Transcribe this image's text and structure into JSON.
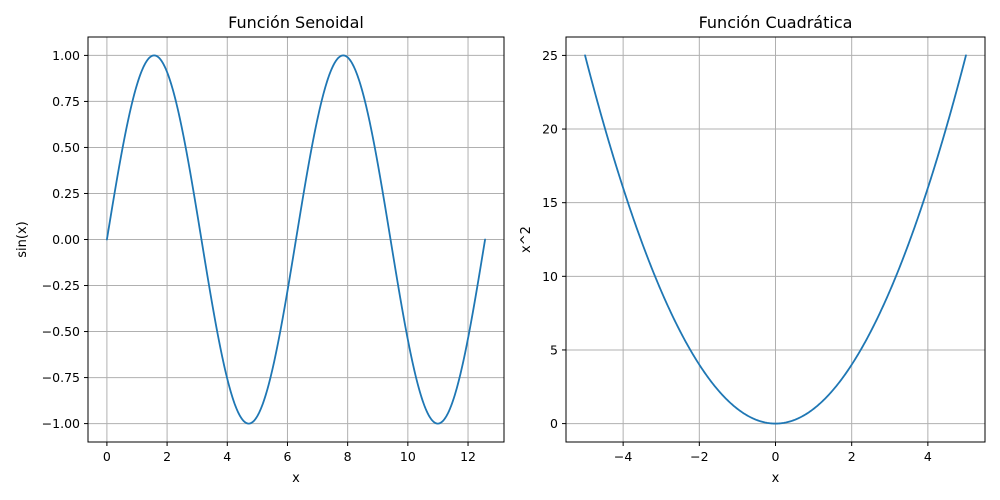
{
  "chart_data": [
    {
      "type": "line",
      "title": "Función Senoidal",
      "xlabel": "x",
      "ylabel": "sin(x)",
      "function": "sin(x)",
      "x_range": [
        0,
        12.566
      ],
      "xlim": [
        -0.628,
        13.195
      ],
      "ylim": [
        -1.1,
        1.1
      ],
      "xticks": [
        0,
        2,
        4,
        6,
        8,
        10,
        12
      ],
      "xtick_labels": [
        "0",
        "2",
        "4",
        "6",
        "8",
        "10",
        "12"
      ],
      "yticks": [
        -1.0,
        -0.75,
        -0.5,
        -0.25,
        0.0,
        0.25,
        0.5,
        0.75,
        1.0
      ],
      "ytick_labels": [
        "−1.00",
        "−0.75",
        "−0.50",
        "−0.25",
        "0.00",
        "0.25",
        "0.50",
        "0.75",
        "1.00"
      ],
      "grid": true,
      "series": [
        {
          "color": "#1f77b4",
          "x": [
            0,
            0.785,
            1.571,
            2.356,
            3.142,
            3.927,
            4.712,
            5.498,
            6.283,
            7.069,
            7.854,
            8.639,
            9.425,
            10.21,
            10.996,
            11.781,
            12.566
          ],
          "y": [
            0,
            0.707,
            1.0,
            0.707,
            0,
            -0.707,
            -1.0,
            -0.707,
            0,
            0.707,
            1.0,
            0.707,
            0,
            -0.707,
            -1.0,
            -0.707,
            0
          ]
        }
      ]
    },
    {
      "type": "line",
      "title": "Función Cuadrática",
      "xlabel": "x",
      "ylabel": "x^2",
      "function": "x^2",
      "x_range": [
        -5,
        5
      ],
      "xlim": [
        -5.5,
        5.5
      ],
      "ylim": [
        -1.25,
        26.25
      ],
      "xticks": [
        -4,
        -2,
        0,
        2,
        4
      ],
      "xtick_labels": [
        "−4",
        "−2",
        "0",
        "2",
        "4"
      ],
      "yticks": [
        0,
        5,
        10,
        15,
        20,
        25
      ],
      "ytick_labels": [
        "0",
        "5",
        "10",
        "15",
        "20",
        "25"
      ],
      "grid": true,
      "series": [
        {
          "color": "#1f77b4",
          "x": [
            -5,
            -4,
            -3,
            -2,
            -1,
            0,
            1,
            2,
            3,
            4,
            5
          ],
          "y": [
            25,
            16,
            9,
            4,
            1,
            0,
            1,
            4,
            9,
            16,
            25
          ]
        }
      ]
    }
  ]
}
